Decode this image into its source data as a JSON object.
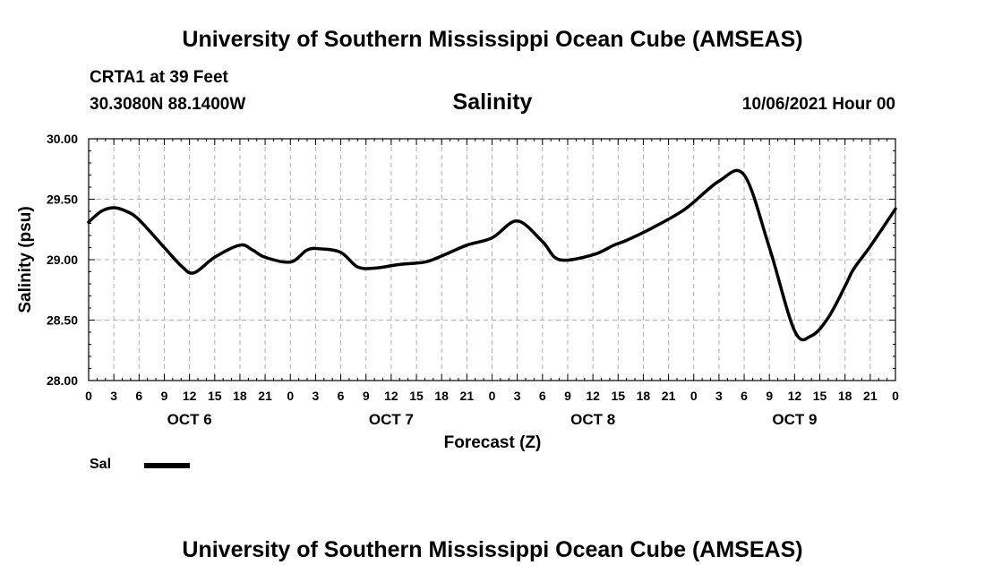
{
  "header": {
    "title": "University of Southern Mississippi Ocean Cube (AMSEAS)",
    "station": "CRTA1 at 39 Feet",
    "coords": "30.3080N  88.1400W",
    "variable": "Salinity",
    "date": "10/06/2021 Hour 00"
  },
  "footer": {
    "title": "University of Southern Mississippi Ocean Cube (AMSEAS)"
  },
  "legend": {
    "label": "Sal"
  },
  "chart_data": {
    "type": "line",
    "title": "Salinity",
    "xlabel": "Forecast (Z)",
    "ylabel": "Salinity (psu)",
    "ylim": [
      28.0,
      30.0
    ],
    "xlim": [
      0,
      96
    ],
    "y_ticks": [
      "28.00",
      "28.50",
      "29.00",
      "29.50",
      "30.00"
    ],
    "x_tick_labels": [
      "0",
      "3",
      "6",
      "9",
      "12",
      "15",
      "18",
      "21",
      "0",
      "3",
      "6",
      "9",
      "12",
      "15",
      "18",
      "21",
      "0",
      "3",
      "6",
      "9",
      "12",
      "15",
      "18",
      "21",
      "0",
      "3",
      "6",
      "9",
      "12",
      "15",
      "18",
      "21",
      "0"
    ],
    "day_labels": [
      {
        "label": "OCT 6",
        "hour": 12
      },
      {
        "label": "OCT 7",
        "hour": 36
      },
      {
        "label": "OCT 8",
        "hour": 60
      },
      {
        "label": "OCT 9",
        "hour": 84
      }
    ],
    "grid": true,
    "series": [
      {
        "name": "Sal",
        "color": "#000000",
        "x": [
          0,
          1.5,
          3,
          4.5,
          6,
          9,
          11,
          12.5,
          15,
          18,
          19.5,
          21,
          24,
          26,
          27.5,
          30,
          32,
          34,
          37,
          40,
          42,
          45,
          48,
          51,
          54,
          56,
          60,
          62.5,
          64,
          67,
          71,
          75,
          78,
          81,
          84,
          86,
          88,
          90,
          91,
          93,
          96
        ],
        "values": [
          29.31,
          29.4,
          29.43,
          29.4,
          29.33,
          29.1,
          28.95,
          28.89,
          29.02,
          29.12,
          29.08,
          29.02,
          28.98,
          29.08,
          29.09,
          29.06,
          28.94,
          28.93,
          28.96,
          28.98,
          29.03,
          29.12,
          29.18,
          29.32,
          29.15,
          29.0,
          29.04,
          29.12,
          29.16,
          29.26,
          29.42,
          29.65,
          29.7,
          29.1,
          28.41,
          28.37,
          28.52,
          28.78,
          28.92,
          29.11,
          29.42
        ]
      }
    ]
  }
}
